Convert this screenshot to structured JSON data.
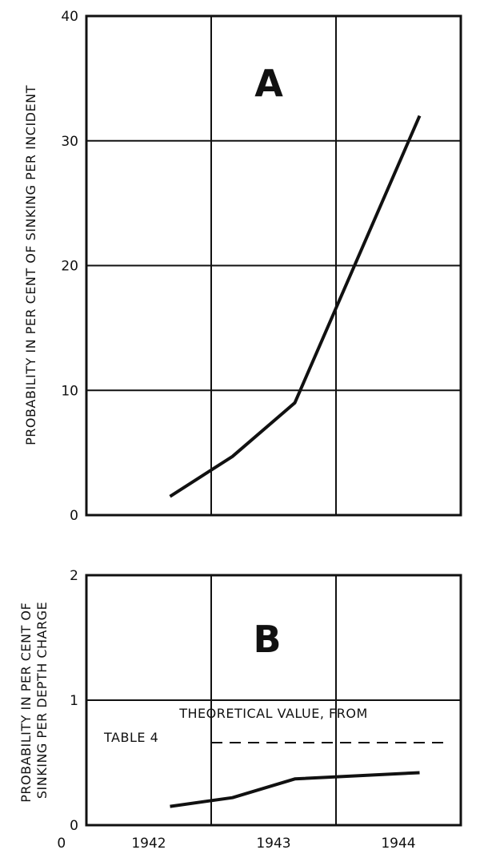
{
  "chart_data": [
    {
      "type": "line",
      "panel": "A",
      "ylabel": "PROBABILITY IN PER CENT OF SINKING PER INCIDENT",
      "ylim": [
        0,
        40
      ],
      "yticks": [
        "0",
        "10",
        "20",
        "30",
        "40"
      ],
      "xlim": [
        1941.75,
        1944.75
      ],
      "grid": true,
      "series": [
        {
          "x": [
            1942.42,
            1942.92,
            1943.42,
            1944.42
          ],
          "y": [
            1.5,
            4.7,
            9.0,
            32.0
          ]
        }
      ]
    },
    {
      "type": "line",
      "panel": "B",
      "ylabel": "PROBABILITY IN PER CENT OF SINKING PER DEPTH CHARGE",
      "ylim": [
        0,
        2
      ],
      "yticks": [
        "0",
        "1",
        "2"
      ],
      "xlim": [
        1941.75,
        1944.75
      ],
      "xticks": [
        "0",
        "1942",
        "1943",
        "1944"
      ],
      "grid": true,
      "annotation_lines": [
        "THEORETICAL VALUE, FROM",
        "TABLE 4"
      ],
      "reference_line": {
        "y": 0.66,
        "x": [
          1942.75,
          1944.75
        ],
        "style": "dashed"
      },
      "series": [
        {
          "x": [
            1942.42,
            1942.92,
            1943.42,
            1944.42
          ],
          "y": [
            0.15,
            0.22,
            0.37,
            0.42
          ]
        }
      ]
    }
  ]
}
